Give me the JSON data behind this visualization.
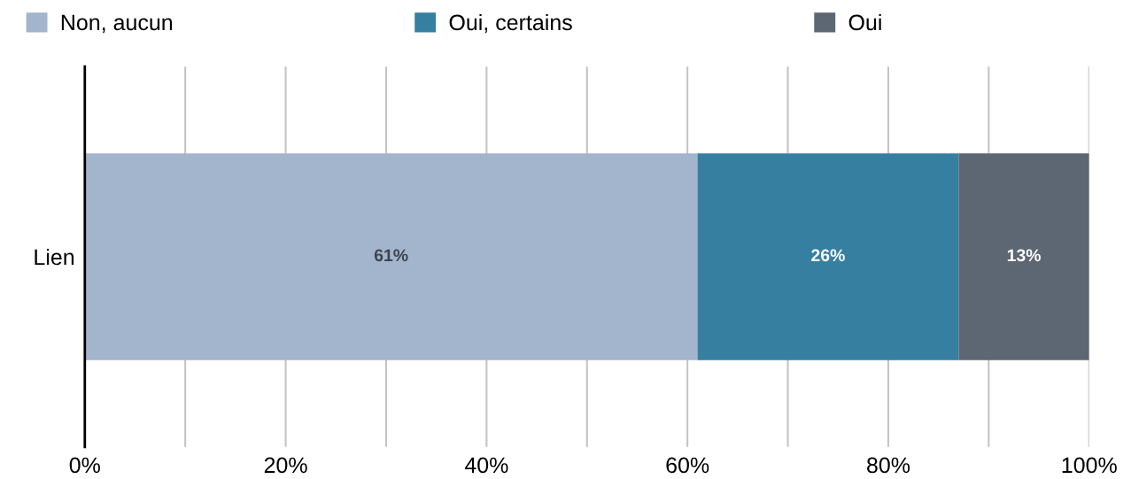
{
  "chart_data": {
    "type": "bar",
    "orientation": "horizontal",
    "stacked": true,
    "categories": [
      "Lien"
    ],
    "series": [
      {
        "name": "Non, aucun",
        "color": "#a3b5cc",
        "values": [
          61
        ],
        "value_labels": [
          "61%"
        ]
      },
      {
        "name": "Oui, certains",
        "color": "#367fa1",
        "values": [
          26
        ],
        "value_labels": [
          "26%"
        ]
      },
      {
        "name": "Oui",
        "color": "#5d6673",
        "values": [
          13
        ],
        "value_labels": [
          "13%"
        ]
      }
    ],
    "xlim": [
      0,
      100
    ],
    "xticks": [
      {
        "value": 0,
        "label": "0%"
      },
      {
        "value": 10,
        "label": null
      },
      {
        "value": 20,
        "label": "20%"
      },
      {
        "value": 30,
        "label": null
      },
      {
        "value": 40,
        "label": "40%"
      },
      {
        "value": 50,
        "label": null
      },
      {
        "value": 60,
        "label": "60%"
      },
      {
        "value": 70,
        "label": null
      },
      {
        "value": 80,
        "label": "80%"
      },
      {
        "value": 90,
        "label": null
      },
      {
        "value": 100,
        "label": "100%"
      }
    ],
    "grid": "x",
    "legend": "top"
  }
}
